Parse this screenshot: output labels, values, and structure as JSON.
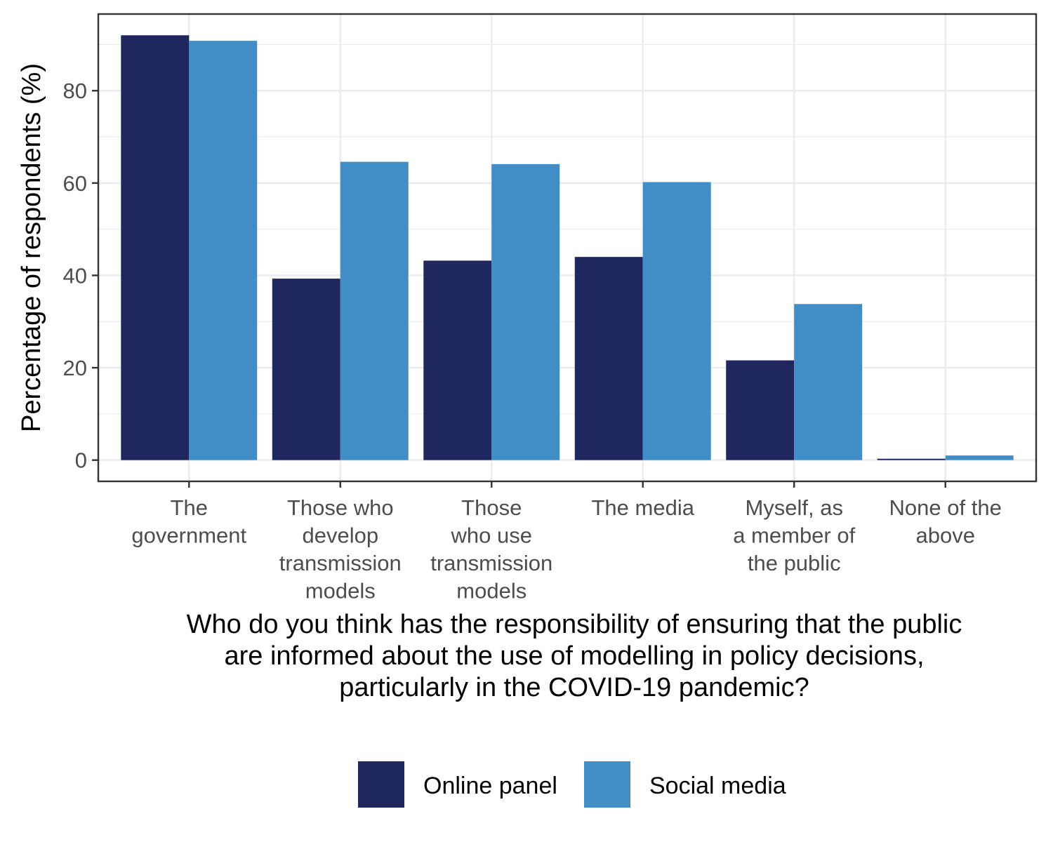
{
  "chart_data": {
    "type": "bar",
    "categories": [
      [
        "The",
        "government"
      ],
      [
        "Those who",
        "develop",
        "transmission",
        "models"
      ],
      [
        "Those",
        "who use",
        "transmission",
        "models"
      ],
      [
        "The media"
      ],
      [
        "Myself, as",
        "a member of",
        "the public"
      ],
      [
        "None of the",
        "above"
      ]
    ],
    "series": [
      {
        "name": "Online panel",
        "color": "#20275f",
        "values": [
          92.0,
          39.3,
          43.2,
          44.0,
          21.6,
          0.3
        ]
      },
      {
        "name": "Social media",
        "color": "#408ec5",
        "values": [
          90.8,
          64.6,
          64.1,
          60.2,
          33.8,
          1.0
        ]
      }
    ],
    "ylabel": "Percentage of respondents (%)",
    "xlabel": [
      "Who do you think has the responsibility of ensuring that the public",
      "are informed about the use of modelling in policy decisions,",
      "particularly in the COVID-19 pandemic?"
    ],
    "yticks": [
      0,
      20,
      40,
      60,
      80
    ],
    "ylim": [
      -4.6,
      96.6
    ],
    "grid": true,
    "legend_position": "bottom"
  }
}
